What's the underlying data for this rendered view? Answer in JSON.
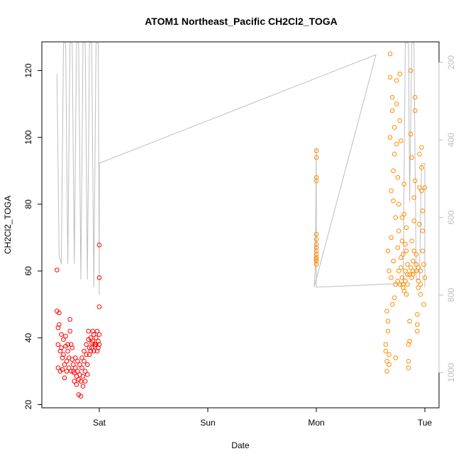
{
  "chart_data": {
    "type": "scatter",
    "title": "ATOM1 Northeast_Pacific CH2Cl2_TOGA",
    "xlabel": "Date",
    "ylabel": "CH2Cl2_TOGA",
    "x_ticks": [
      "Sat",
      "Sun",
      "Mon",
      "Tue"
    ],
    "y_ticks": [
      20,
      40,
      60,
      80,
      100,
      120
    ],
    "y_right_ticks": [
      200,
      400,
      600,
      800,
      1000
    ],
    "xlim_days": [
      -0.45,
      3.1
    ],
    "ylim": [
      20,
      129
    ],
    "y_right_lim": [
      1030,
      160
    ],
    "colors": {
      "series_red": "#ff0000",
      "series_orange": "#ff8c00",
      "pressure_line": "#bebebe",
      "right_axis": "#bdbdbd"
    },
    "series": [
      {
        "color": "series_red",
        "x": [
          -0.39,
          -0.39,
          -0.38,
          -0.38,
          -0.38,
          -0.37,
          -0.37,
          -0.36,
          -0.36,
          -0.35,
          -0.35,
          -0.34,
          -0.34,
          -0.33,
          -0.33,
          -0.32,
          -0.32,
          -0.31,
          -0.31,
          -0.3,
          -0.3,
          -0.29,
          -0.29,
          -0.28,
          -0.28,
          -0.27,
          -0.27,
          -0.26,
          -0.26,
          -0.25,
          -0.25,
          -0.24,
          -0.24,
          -0.23,
          -0.23,
          -0.22,
          -0.22,
          -0.21,
          -0.21,
          -0.2,
          -0.2,
          -0.19,
          -0.19,
          -0.18,
          -0.18,
          -0.17,
          -0.17,
          -0.16,
          -0.16,
          -0.15,
          -0.15,
          -0.14,
          -0.14,
          -0.13,
          -0.13,
          -0.12,
          -0.12,
          -0.11,
          -0.11,
          -0.1,
          -0.1,
          -0.09,
          -0.09,
          -0.08,
          -0.08,
          -0.07,
          -0.07,
          -0.06,
          -0.06,
          -0.05,
          -0.05,
          -0.04,
          -0.04,
          -0.03,
          -0.03,
          -0.02,
          -0.02,
          -0.01,
          -0.01,
          0.0,
          0.0,
          0.0,
          0.0,
          0.0
        ],
        "y": [
          60.3,
          48,
          43,
          38,
          31,
          47.5,
          44,
          36,
          30,
          41,
          37,
          34,
          30.5,
          39.5,
          35,
          32,
          28,
          40.5,
          37.5,
          33,
          30,
          38,
          36,
          34,
          31,
          45.5,
          42,
          38,
          30,
          37,
          33.5,
          30,
          32,
          29.5,
          27,
          34,
          31,
          28.5,
          26,
          33,
          30,
          27.5,
          23,
          32,
          29,
          27,
          22.5,
          34,
          31,
          28.5,
          25.5,
          36,
          33,
          30,
          27,
          38,
          35,
          32,
          29,
          42,
          39.5,
          37,
          35,
          36,
          40,
          37,
          38.5,
          42,
          39,
          36,
          41,
          38,
          37.5,
          40,
          38,
          36,
          42,
          39,
          37,
          49.3,
          58,
          67.8,
          41,
          38
        ]
      },
      {
        "color": "series_orange",
        "x": [
          2.0,
          2.0,
          2.0,
          2.0,
          2.0,
          2.0,
          2.0,
          2.0,
          2.0,
          2.0,
          2.0,
          2.0,
          2.0,
          2.0,
          2.64,
          2.64,
          2.65,
          2.65,
          2.65,
          2.66,
          2.66,
          2.66,
          2.67,
          2.67,
          2.67,
          2.68,
          2.68,
          2.68,
          2.69,
          2.69,
          2.69,
          2.7,
          2.7,
          2.7,
          2.71,
          2.71,
          2.71,
          2.72,
          2.72,
          2.72,
          2.73,
          2.73,
          2.73,
          2.74,
          2.74,
          2.74,
          2.75,
          2.75,
          2.75,
          2.76,
          2.76,
          2.76,
          2.77,
          2.77,
          2.77,
          2.78,
          2.78,
          2.78,
          2.79,
          2.79,
          2.79,
          2.8,
          2.8,
          2.8,
          2.81,
          2.81,
          2.81,
          2.82,
          2.82,
          2.82,
          2.83,
          2.83,
          2.83,
          2.84,
          2.84,
          2.84,
          2.85,
          2.85,
          2.85,
          2.86,
          2.86,
          2.86,
          2.87,
          2.87,
          2.87,
          2.88,
          2.88,
          2.88,
          2.89,
          2.89,
          2.89,
          2.9,
          2.9,
          2.9,
          2.91,
          2.91,
          2.91,
          2.92,
          2.92,
          2.92,
          2.93,
          2.93,
          2.93,
          2.94,
          2.94,
          2.94,
          2.95,
          2.95,
          2.95,
          2.96,
          2.96,
          2.96,
          2.97,
          2.97,
          2.97,
          2.98,
          2.98,
          2.98,
          2.99,
          2.99,
          3.0,
          3.0
        ],
        "y": [
          96,
          94,
          88,
          87,
          71,
          69.5,
          68,
          67,
          66,
          65,
          64,
          63.5,
          63,
          62,
          38,
          36,
          33,
          30,
          48,
          45,
          42,
          66,
          60,
          35,
          32,
          125,
          118,
          100,
          84,
          70,
          58,
          50,
          112,
          108,
          90,
          81,
          63,
          52,
          103,
          95,
          76,
          56,
          34,
          117,
          110,
          98,
          88,
          67,
          57,
          80,
          72,
          60,
          56,
          119,
          105,
          99,
          64,
          61,
          58,
          76,
          69,
          65,
          56,
          55,
          54,
          86,
          77,
          68,
          60,
          57,
          53,
          73,
          66,
          62,
          59,
          56,
          38,
          33,
          31,
          45,
          39,
          59,
          61,
          120,
          101,
          94,
          69,
          58,
          59,
          60,
          63,
          66,
          75,
          82,
          112,
          108,
          87,
          65,
          62,
          60,
          42,
          44,
          47,
          61,
          57,
          55,
          95,
          85,
          74,
          60,
          56,
          53,
          97,
          91,
          84,
          78,
          72,
          66,
          62,
          50,
          58,
          85
        ]
      }
    ],
    "pressure_line": {
      "color": "pressure_line",
      "axis": "right",
      "points": [
        [
          -0.39,
          230
        ],
        [
          -0.37,
          700
        ],
        [
          -0.35,
          720
        ],
        [
          -0.33,
          150
        ],
        [
          -0.31,
          150
        ],
        [
          -0.29,
          720
        ],
        [
          -0.27,
          150
        ],
        [
          -0.25,
          150
        ],
        [
          -0.23,
          720
        ],
        [
          -0.21,
          150
        ],
        [
          -0.19,
          150
        ],
        [
          -0.17,
          760
        ],
        [
          -0.15,
          150
        ],
        [
          -0.13,
          150
        ],
        [
          -0.11,
          760
        ],
        [
          -0.09,
          150
        ],
        [
          -0.07,
          150
        ],
        [
          -0.05,
          780
        ],
        [
          -0.03,
          150
        ],
        [
          -0.01,
          150
        ],
        [
          0.0,
          800
        ],
        [
          0.0,
          460
        ],
        [
          2.55,
          180
        ],
        [
          2.55,
          180
        ],
        [
          1.98,
          780
        ],
        [
          1.99,
          740
        ],
        [
          2.0,
          420
        ],
        [
          2.0,
          780
        ],
        [
          2.8,
          770
        ],
        [
          2.82,
          150
        ],
        [
          2.85,
          150
        ],
        [
          2.86,
          560
        ],
        [
          2.88,
          150
        ],
        [
          2.9,
          150
        ],
        [
          2.92,
          760
        ],
        [
          2.95,
          760
        ],
        [
          2.97,
          460
        ],
        [
          3.0,
          460
        ],
        [
          3.0,
          780
        ]
      ]
    }
  }
}
